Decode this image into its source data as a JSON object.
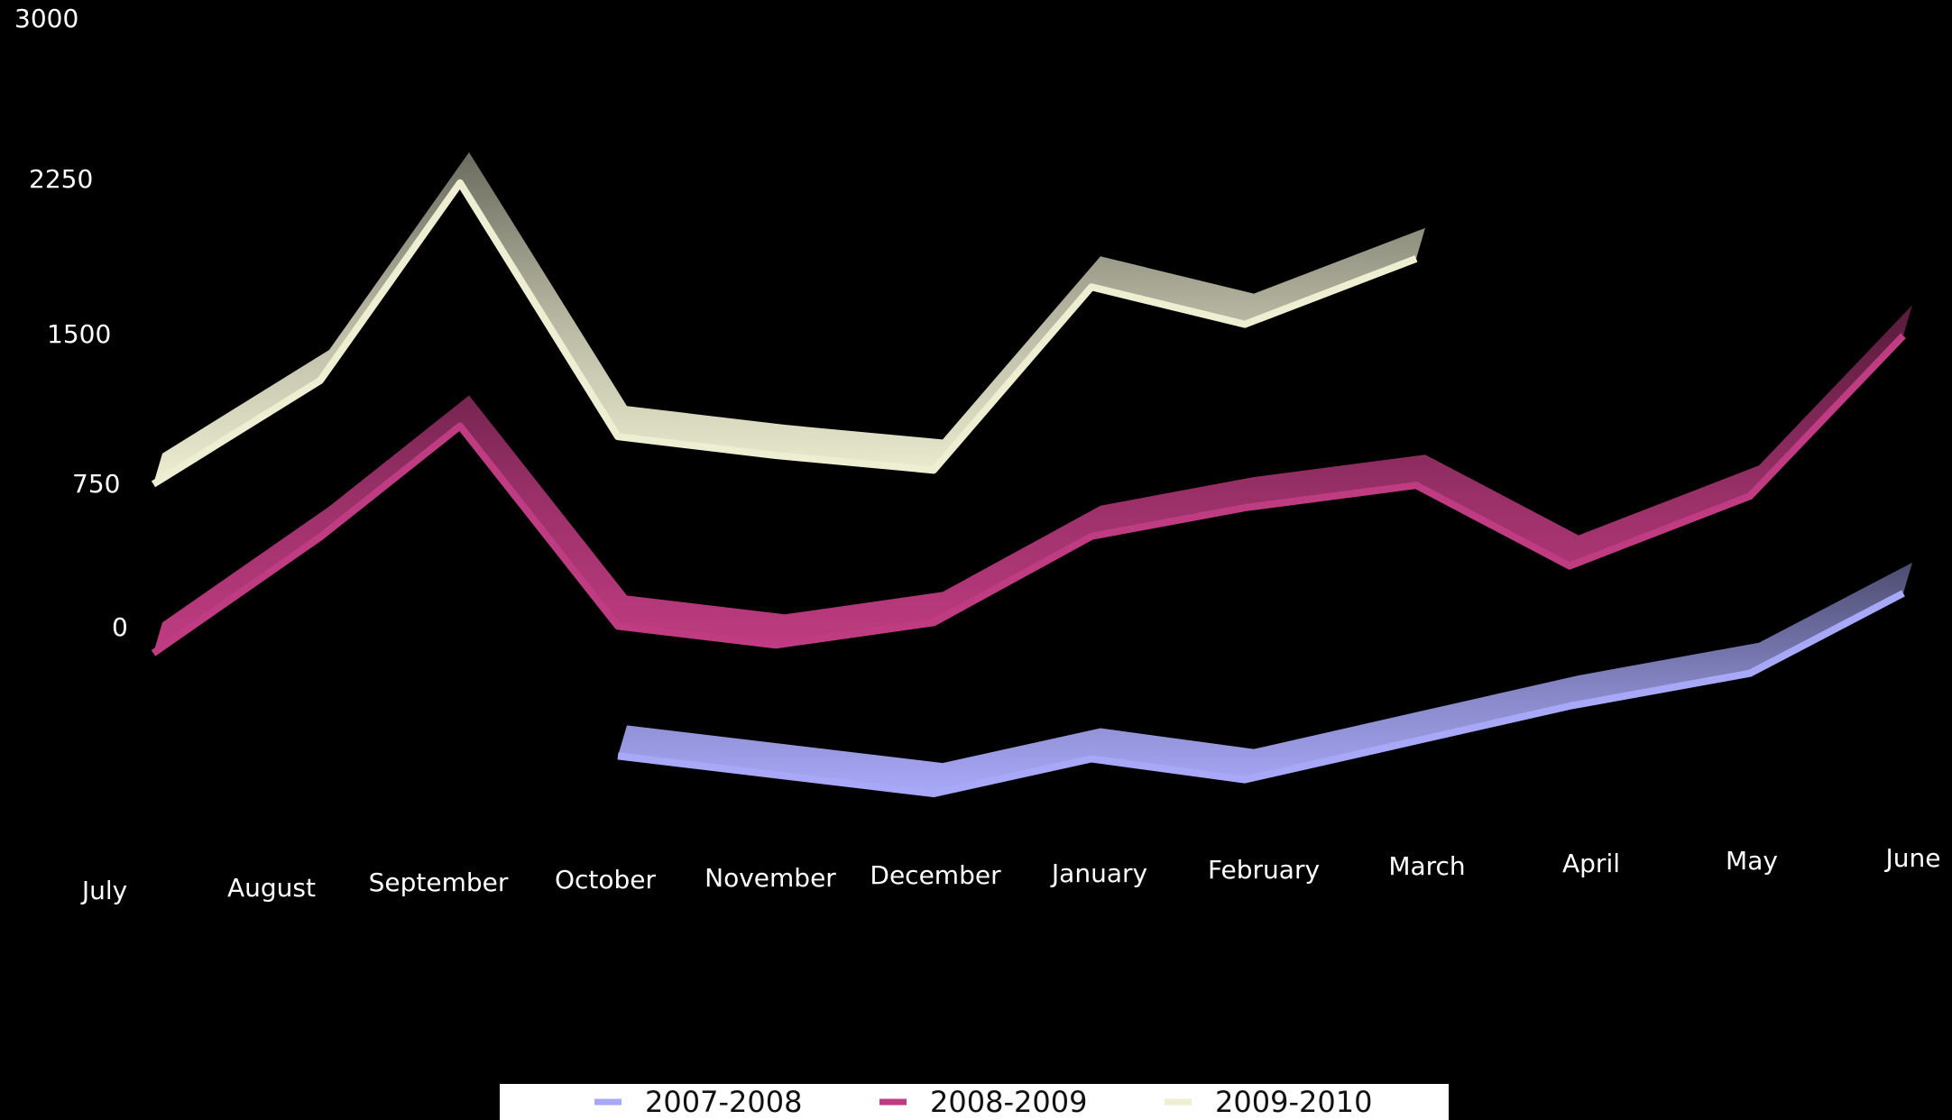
{
  "chart_data": {
    "type": "line",
    "title": "",
    "xlabel": "",
    "ylabel": "",
    "categories": [
      "July",
      "August",
      "September",
      "October",
      "November",
      "December",
      "January",
      "February",
      "March",
      "April",
      "May",
      "June"
    ],
    "y_ticks": [
      "3000",
      "2250",
      "1500",
      "750",
      "0"
    ],
    "ylim": [
      -1250,
      3000
    ],
    "grid": false,
    "legend_position": "bottom",
    "series": [
      {
        "name": "2007-2008",
        "color": "#a8a8f8",
        "values": [
          null,
          null,
          null,
          -610,
          -710,
          -810,
          -650,
          -760,
          -580,
          -420,
          -270,
          110
        ]
      },
      {
        "name": "2008-2009",
        "color": "#c03c82",
        "values": [
          -80,
          470,
          1000,
          20,
          -80,
          20,
          430,
          560,
          660,
          260,
          590,
          1360
        ]
      },
      {
        "name": "2009-2010",
        "color": "#eeeed2",
        "values": [
          740,
          1230,
          2180,
          940,
          840,
          760,
          1640,
          1450,
          1760,
          null,
          null,
          null
        ]
      }
    ]
  }
}
